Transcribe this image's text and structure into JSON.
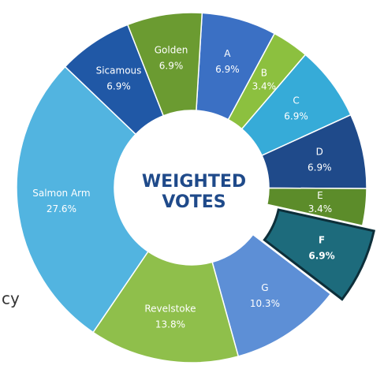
{
  "chart_data": {
    "type": "donut",
    "title": "WEIGHTED VOTES",
    "annotation": "cy",
    "categories": [
      "A",
      "B",
      "C",
      "D",
      "E",
      "F",
      "G",
      "Revelstoke",
      "Salmon Arm",
      "Sicamous",
      "Golden"
    ],
    "values": [
      6.9,
      3.4,
      6.9,
      6.9,
      3.4,
      6.9,
      10.3,
      13.8,
      27.6,
      6.9,
      6.9
    ],
    "value_labels": [
      "6.9%",
      "3.4%",
      "6.9%",
      "6.9%",
      "3.4%",
      "6.9%",
      "10.3%",
      "13.8%",
      "27.6%",
      "6.9%",
      "6.9%"
    ],
    "colors": [
      "#3b70c4",
      "#8cc03f",
      "#36abd8",
      "#1f4a8a",
      "#5c8c2a",
      "#1d6b7c",
      "#5d8fd6",
      "#8fbf4b",
      "#52b4e0",
      "#2058a6",
      "#6b9b31"
    ],
    "highlight": "F"
  }
}
